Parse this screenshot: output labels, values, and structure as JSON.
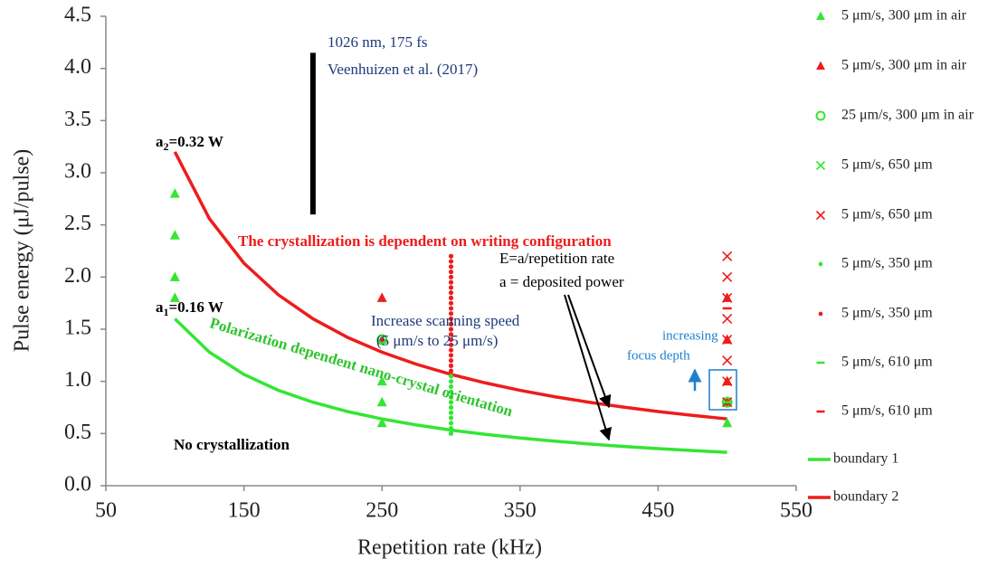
{
  "chart_data": {
    "type": "scatter",
    "x_label": "Repetition rate (kHz)",
    "y_label": "Pulse energy (μJ/pulse)",
    "xlim": [
      50,
      550
    ],
    "ylim": [
      0,
      4.5
    ],
    "xticks": [
      50,
      150,
      250,
      350,
      450,
      550
    ],
    "yticks": [
      {
        "value": 0,
        "label": "0.0"
      },
      0.5,
      {
        "value": 1,
        "label": "1.0"
      },
      1.5,
      {
        "value": 2,
        "label": "2.0"
      },
      2.5,
      {
        "value": 3,
        "label": "3.0"
      },
      3.5,
      {
        "value": 4,
        "label": "4.0"
      },
      4.5
    ],
    "grid": false,
    "legend": "right",
    "series": [
      {
        "name": "boundary 1",
        "color": "#33e633",
        "marker": "line",
        "x": [
          100,
          125,
          150,
          175,
          200,
          225,
          250,
          275,
          300,
          325,
          350,
          375,
          400,
          425,
          450,
          475,
          500
        ],
        "values": [
          1.6,
          1.28,
          1.067,
          0.914,
          0.8,
          0.711,
          0.64,
          0.582,
          0.533,
          0.492,
          0.457,
          0.427,
          0.4,
          0.376,
          0.356,
          0.337,
          0.32
        ]
      },
      {
        "name": "boundary 2",
        "color": "#ee1c1c",
        "marker": "line",
        "x": [
          100,
          125,
          150,
          175,
          200,
          225,
          250,
          275,
          300,
          325,
          350,
          375,
          400,
          425,
          450,
          475,
          500
        ],
        "values": [
          3.2,
          2.56,
          2.133,
          1.829,
          1.6,
          1.422,
          1.28,
          1.164,
          1.067,
          0.985,
          0.914,
          0.853,
          0.8,
          0.753,
          0.711,
          0.674,
          0.64
        ]
      },
      {
        "name": "5 μm/s, 300 μm in air",
        "color": "#33e633",
        "marker": "triangle",
        "x": [
          100,
          100,
          100,
          100,
          250,
          250,
          250,
          250,
          500,
          500,
          500
        ],
        "values": [
          1.8,
          2.0,
          2.4,
          2.8,
          0.6,
          0.8,
          1.0,
          1.4,
          0.6,
          0.8,
          1.0
        ]
      },
      {
        "name": "5 μm/s, 300 μm in air",
        "color": "#ee1c1c",
        "marker": "triangle",
        "x": [
          250,
          500,
          500,
          500,
          500
        ],
        "values": [
          1.8,
          0.8,
          1.0,
          1.4,
          1.8
        ]
      },
      {
        "name": "25 μm/s, 300 μm in air",
        "color": "#33e633",
        "marker": "circle",
        "x": [
          250,
          500
        ],
        "values": [
          1.4,
          0.8
        ]
      },
      {
        "name": "5 μm/s, 650 μm",
        "color": "#33e633",
        "marker": "cross",
        "x": [
          500
        ],
        "values": [
          0.8
        ]
      },
      {
        "name": "5 μm/s, 650 μm",
        "color": "#ee1c1c",
        "marker": "cross",
        "x": [
          500,
          500,
          500,
          500,
          500,
          500,
          500,
          500
        ],
        "values": [
          0.8,
          1.0,
          1.2,
          1.4,
          1.6,
          1.8,
          2.0,
          2.2
        ]
      },
      {
        "name": "5 μm/s, 350 μm",
        "color": "#33e633",
        "marker": "dot",
        "x": [
          300,
          300,
          300,
          300,
          300,
          300,
          300,
          300,
          300,
          300,
          300,
          300
        ],
        "values": [
          0.5,
          0.55,
          0.6,
          0.65,
          0.7,
          0.75,
          0.8,
          0.85,
          0.9,
          0.95,
          1.0,
          1.05
        ]
      },
      {
        "name": "5 μm/s, 350 μm",
        "color": "#ee1c1c",
        "marker": "dot",
        "x": [
          300,
          300,
          300,
          300,
          300,
          300,
          300,
          300,
          300,
          300,
          300,
          300,
          300,
          300,
          300,
          300,
          300,
          300,
          300,
          300,
          300,
          300,
          300,
          250,
          500
        ],
        "values": [
          1.1,
          1.15,
          1.2,
          1.25,
          1.3,
          1.35,
          1.4,
          1.45,
          1.5,
          1.55,
          1.6,
          1.65,
          1.7,
          1.75,
          1.8,
          1.85,
          1.9,
          1.95,
          2.0,
          2.05,
          2.1,
          2.15,
          2.2,
          1.4,
          1.8
        ]
      },
      {
        "name": "5 μm/s, 610 μm",
        "color": "#33e633",
        "marker": "dash",
        "x": [
          500
        ],
        "values": [
          0.8
        ]
      },
      {
        "name": "5 μm/s, 610 μm",
        "color": "#ee1c1c",
        "marker": "dash",
        "x": [
          500
        ],
        "values": [
          1.7
        ]
      }
    ],
    "reference_line": {
      "x": 200,
      "y": [
        2.6,
        4.15
      ],
      "color": "#000000"
    },
    "annotations": {
      "source_1": "1026 nm, 175 fs",
      "source_2": "Veenhuizen et al. (2017)",
      "a2": {
        "base": "a",
        "sub": "2",
        "rest": "=0.32 W"
      },
      "a1": {
        "base": "a",
        "sub": "1",
        "rest": "=0.16 W"
      },
      "dependent": "The crystallization  is dependent on writing configuration",
      "formula_1": "E=a/repetition rate",
      "formula_2": "a = deposited power",
      "speed_1": "Increase scanning speed",
      "speed_2": "(5 μm/s to 25 μm/s)",
      "polarization": "Polarization dependent nano-crystal orientation",
      "none": "No crystallization",
      "focus_1": "increasing",
      "focus_2": "focus depth"
    }
  }
}
